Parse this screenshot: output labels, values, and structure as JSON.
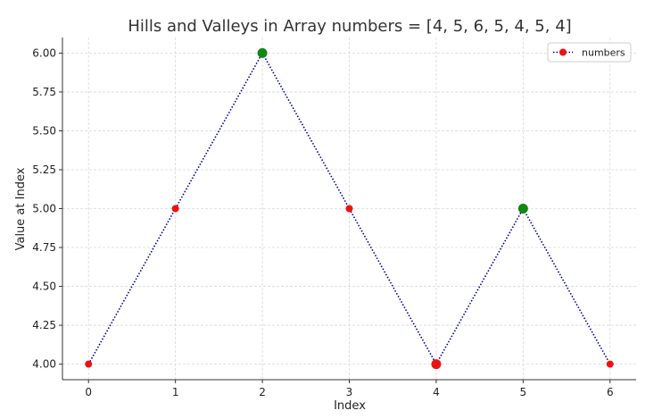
{
  "chart_data": {
    "type": "line",
    "title": "Hills and Valleys in Array numbers = [4, 5, 6, 5, 4, 5, 4]",
    "xlabel": "Index",
    "ylabel": "Value at Index",
    "x": [
      0,
      1,
      2,
      3,
      4,
      5,
      6
    ],
    "x_ticks": [
      "0",
      "1",
      "2",
      "3",
      "4",
      "5",
      "6"
    ],
    "y_ticks": [
      "4.00",
      "4.25",
      "4.50",
      "4.75",
      "5.00",
      "5.25",
      "5.50",
      "5.75",
      "6.00"
    ],
    "xlim": [
      -0.3,
      6.3
    ],
    "ylim": [
      3.9,
      6.1
    ],
    "grid": true,
    "legend_position": "top-right",
    "series": [
      {
        "name": "numbers",
        "values": [
          4,
          5,
          6,
          5,
          4,
          5,
          4
        ],
        "line_color": "#0000aa",
        "line_style": "dotted",
        "marker_color": "#ee1111"
      }
    ],
    "highlighted_points": [
      {
        "x": 2,
        "y": 6,
        "color": "#118811",
        "kind": "hill"
      },
      {
        "x": 4,
        "y": 4,
        "color": "#ee1111",
        "kind": "valley"
      },
      {
        "x": 5,
        "y": 5,
        "color": "#118811",
        "kind": "hill"
      }
    ]
  }
}
